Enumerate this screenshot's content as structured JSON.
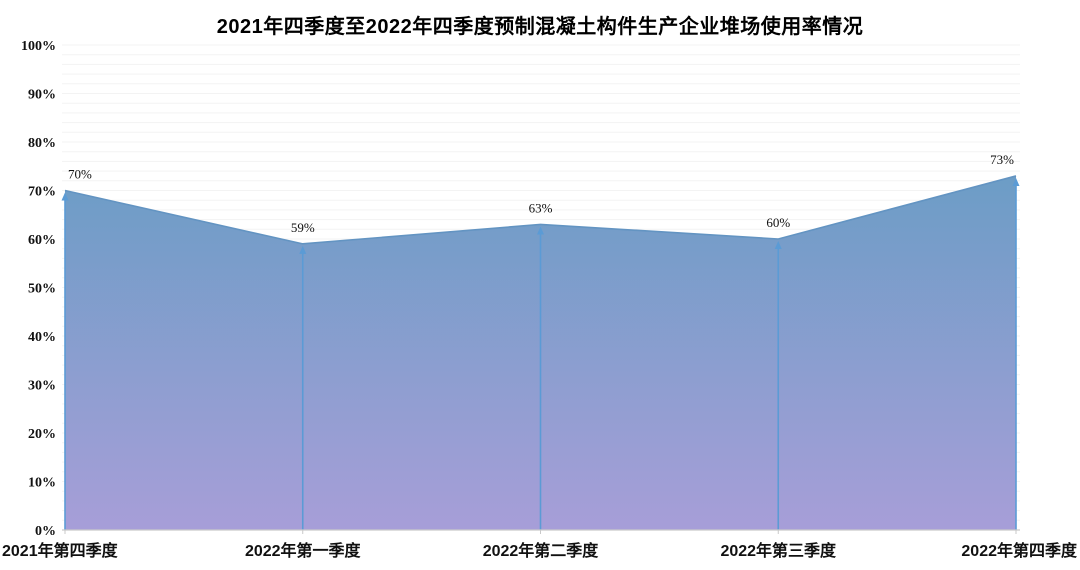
{
  "title": "2021年四季度至2022年四季度预制混凝土构件生产企业堆场使用率情况",
  "chart_data": {
    "type": "area",
    "title": "2021年四季度至2022年四季度预制混凝土构件生产企业堆场使用率情况",
    "categories": [
      "2021年第四季度",
      "2022年第一季度",
      "2022年第二季度",
      "2022年第三季度",
      "2022年第四季度"
    ],
    "values": [
      70,
      59,
      63,
      60,
      73
    ],
    "data_labels": [
      "70%",
      "59%",
      "63%",
      "60%",
      "73%"
    ],
    "unit": "%",
    "xlabel": "",
    "ylabel": "",
    "ylim": [
      0,
      100
    ],
    "ytick_step": 10,
    "ytick_labels": [
      "0%",
      "10%",
      "20%",
      "30%",
      "40%",
      "50%",
      "60%",
      "70%",
      "80%",
      "90%",
      "100%"
    ],
    "minor_grid_step": 2,
    "grid": "on",
    "legend": "none",
    "colors": {
      "area_gradient_top": "#6C9DC6",
      "area_gradient_bottom": "#A79ED8",
      "series_line": "#6394C2",
      "drop_line": "#5B9BD5",
      "minor_grid": "#F3F3F3",
      "axis": "#C9C9C9",
      "text": "#111111"
    }
  }
}
